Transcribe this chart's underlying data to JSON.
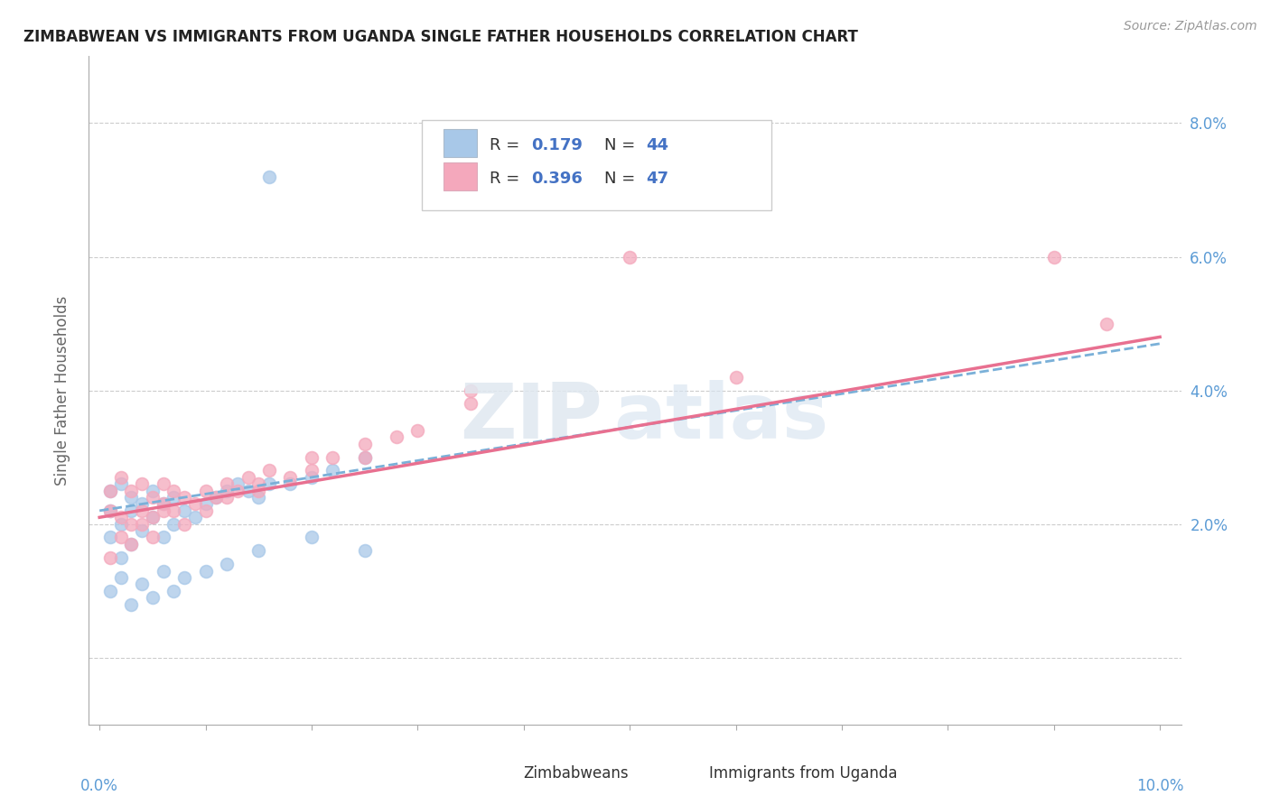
{
  "title": "ZIMBABWEAN VS IMMIGRANTS FROM UGANDA SINGLE FATHER HOUSEHOLDS CORRELATION CHART",
  "source": "Source: ZipAtlas.com",
  "ylabel": "Single Father Households",
  "xlim": [
    0.0,
    0.1
  ],
  "ylim": [
    -0.01,
    0.09
  ],
  "yticks": [
    0.0,
    0.02,
    0.04,
    0.06,
    0.08
  ],
  "ytick_labels": [
    "",
    "2.0%",
    "4.0%",
    "6.0%",
    "8.0%"
  ],
  "zimbabwean_color": "#a8c8e8",
  "uganda_color": "#f4a8bc",
  "line_zim_color": "#7ab0d8",
  "line_uga_color": "#e87090",
  "legend_R1": "0.179",
  "legend_N1": "44",
  "legend_R2": "0.396",
  "legend_N2": "47",
  "zim_x": [
    0.001,
    0.001,
    0.001,
    0.002,
    0.002,
    0.002,
    0.003,
    0.003,
    0.003,
    0.004,
    0.004,
    0.005,
    0.005,
    0.006,
    0.006,
    0.007,
    0.007,
    0.008,
    0.009,
    0.01,
    0.011,
    0.012,
    0.013,
    0.014,
    0.015,
    0.016,
    0.018,
    0.02,
    0.022,
    0.025,
    0.001,
    0.002,
    0.003,
    0.004,
    0.005,
    0.006,
    0.007,
    0.008,
    0.01,
    0.012,
    0.015,
    0.02,
    0.016,
    0.025
  ],
  "zim_y": [
    0.025,
    0.022,
    0.018,
    0.026,
    0.02,
    0.015,
    0.024,
    0.022,
    0.017,
    0.023,
    0.019,
    0.025,
    0.021,
    0.023,
    0.018,
    0.024,
    0.02,
    0.022,
    0.021,
    0.023,
    0.024,
    0.025,
    0.026,
    0.025,
    0.024,
    0.026,
    0.026,
    0.027,
    0.028,
    0.03,
    0.01,
    0.012,
    0.008,
    0.011,
    0.009,
    0.013,
    0.01,
    0.012,
    0.013,
    0.014,
    0.016,
    0.018,
    0.072,
    0.016
  ],
  "uga_x": [
    0.001,
    0.001,
    0.002,
    0.002,
    0.003,
    0.003,
    0.004,
    0.004,
    0.005,
    0.005,
    0.006,
    0.006,
    0.007,
    0.007,
    0.008,
    0.009,
    0.01,
    0.011,
    0.012,
    0.013,
    0.014,
    0.015,
    0.016,
    0.018,
    0.02,
    0.022,
    0.025,
    0.028,
    0.03,
    0.035,
    0.001,
    0.002,
    0.003,
    0.004,
    0.005,
    0.006,
    0.008,
    0.01,
    0.012,
    0.015,
    0.02,
    0.025,
    0.035,
    0.05,
    0.06,
    0.09,
    0.095
  ],
  "uga_y": [
    0.025,
    0.022,
    0.027,
    0.021,
    0.025,
    0.02,
    0.026,
    0.022,
    0.024,
    0.021,
    0.026,
    0.023,
    0.025,
    0.022,
    0.024,
    0.023,
    0.025,
    0.024,
    0.026,
    0.025,
    0.027,
    0.026,
    0.028,
    0.027,
    0.03,
    0.03,
    0.032,
    0.033,
    0.034,
    0.038,
    0.015,
    0.018,
    0.017,
    0.02,
    0.018,
    0.022,
    0.02,
    0.022,
    0.024,
    0.025,
    0.028,
    0.03,
    0.04,
    0.06,
    0.042,
    0.06,
    0.05
  ]
}
